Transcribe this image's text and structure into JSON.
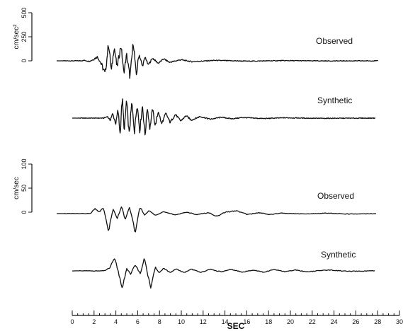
{
  "chart_data": {
    "type": "line",
    "xlabel": "SEC",
    "xlim": [
      0,
      30
    ],
    "x_ticks": [
      "0",
      "2",
      "4",
      "6",
      "8",
      "10",
      "12",
      "14",
      "16",
      "18",
      "20",
      "22",
      "24",
      "26",
      "28",
      "30"
    ],
    "panels": [
      {
        "unit_label": "cm/sec²",
        "y_ticks": [
          "0",
          "250",
          "500"
        ],
        "ylim": [
          0,
          500
        ],
        "traces": [
          {
            "label": "Observed",
            "points": [
              [
                0.0,
                0
              ],
              [
                2.0,
                0
              ],
              [
                2.5,
                4
              ],
              [
                2.9,
                -6
              ],
              [
                3.2,
                10
              ],
              [
                3.6,
                36
              ],
              [
                3.9,
                -16
              ],
              [
                4.3,
                -118
              ],
              [
                4.6,
                162
              ],
              [
                4.85,
                -96
              ],
              [
                5.1,
                132
              ],
              [
                5.35,
                -60
              ],
              [
                5.7,
                142
              ],
              [
                5.95,
                -112
              ],
              [
                6.2,
                56
              ],
              [
                6.5,
                -150
              ],
              [
                6.8,
                176
              ],
              [
                7.05,
                -140
              ],
              [
                7.3,
                64
              ],
              [
                7.6,
                -50
              ],
              [
                7.85,
                36
              ],
              [
                8.1,
                -38
              ],
              [
                8.5,
                24
              ],
              [
                9.0,
                -22
              ],
              [
                9.5,
                18
              ],
              [
                10.0,
                -14
              ],
              [
                11.0,
                10
              ],
              [
                12.0,
                -8
              ],
              [
                14.0,
                4
              ],
              [
                17.0,
                -3
              ],
              [
                20.0,
                2
              ],
              [
                24.0,
                -1
              ],
              [
                28.5,
                0
              ]
            ]
          },
          {
            "label": "Synthetic",
            "points": [
              [
                0.0,
                0
              ],
              [
                3.0,
                0
              ],
              [
                3.3,
                16
              ],
              [
                3.55,
                -20
              ],
              [
                3.8,
                40
              ],
              [
                4.1,
                -52
              ],
              [
                4.3,
                76
              ],
              [
                4.5,
                -142
              ],
              [
                4.7,
                184
              ],
              [
                4.9,
                -122
              ],
              [
                5.1,
                168
              ],
              [
                5.35,
                -150
              ],
              [
                5.6,
                142
              ],
              [
                5.85,
                -120
              ],
              [
                6.1,
                132
              ],
              [
                6.35,
                -116
              ],
              [
                6.6,
                122
              ],
              [
                6.85,
                -162
              ],
              [
                7.05,
                104
              ],
              [
                7.3,
                -96
              ],
              [
                7.55,
                86
              ],
              [
                7.8,
                -70
              ],
              [
                8.1,
                62
              ],
              [
                8.4,
                -54
              ],
              [
                8.8,
                44
              ],
              [
                9.2,
                -40
              ],
              [
                9.7,
                34
              ],
              [
                10.2,
                -26
              ],
              [
                10.7,
                22
              ],
              [
                11.2,
                -18
              ],
              [
                12.0,
                14
              ],
              [
                13.0,
                -10
              ],
              [
                14.0,
                8
              ],
              [
                15.0,
                -6
              ],
              [
                16.0,
                5
              ],
              [
                18.0,
                -4
              ],
              [
                20.0,
                3
              ],
              [
                23.0,
                -2
              ],
              [
                28.5,
                0
              ]
            ]
          }
        ]
      },
      {
        "unit_label": "cm/sec",
        "y_ticks": [
          "0",
          "50",
          "100"
        ],
        "ylim": [
          0,
          100
        ],
        "traces": [
          {
            "label": "Observed",
            "points": [
              [
                0.0,
                0
              ],
              [
                3.0,
                0
              ],
              [
                3.4,
                10
              ],
              [
                3.8,
                4
              ],
              [
                4.2,
                12
              ],
              [
                4.6,
                -40
              ],
              [
                5.0,
                10
              ],
              [
                5.4,
                -10
              ],
              [
                5.8,
                16
              ],
              [
                6.1,
                -14
              ],
              [
                6.5,
                14
              ],
              [
                7.0,
                -42
              ],
              [
                7.4,
                16
              ],
              [
                7.8,
                -4
              ],
              [
                8.2,
                6
              ],
              [
                8.8,
                -3
              ],
              [
                9.5,
                4
              ],
              [
                10.5,
                -3
              ],
              [
                11.5,
                3
              ],
              [
                12.5,
                -2
              ],
              [
                13.5,
                2
              ],
              [
                14.3,
                -6
              ],
              [
                15.0,
                3
              ],
              [
                16.0,
                6
              ],
              [
                17.0,
                -2
              ],
              [
                18.0,
                2
              ],
              [
                19.0,
                -2
              ],
              [
                20.0,
                1
              ],
              [
                22.0,
                -1
              ],
              [
                24.0,
                1
              ],
              [
                26.0,
                -1
              ],
              [
                28.5,
                0
              ]
            ]
          },
          {
            "label": "Synthetic",
            "points": [
              [
                0.0,
                0
              ],
              [
                3.0,
                0
              ],
              [
                3.5,
                6
              ],
              [
                4.0,
                26
              ],
              [
                4.4,
                -8
              ],
              [
                4.7,
                -38
              ],
              [
                5.1,
                6
              ],
              [
                5.5,
                -8
              ],
              [
                5.9,
                14
              ],
              [
                6.4,
                -6
              ],
              [
                6.8,
                28
              ],
              [
                7.1,
                -8
              ],
              [
                7.4,
                -38
              ],
              [
                7.8,
                8
              ],
              [
                8.2,
                -4
              ],
              [
                8.6,
                6
              ],
              [
                9.2,
                -4
              ],
              [
                9.8,
                4
              ],
              [
                10.5,
                -4
              ],
              [
                11.2,
                4
              ],
              [
                12.0,
                -3
              ],
              [
                13.0,
                3
              ],
              [
                14.0,
                -2
              ],
              [
                15.0,
                3
              ],
              [
                16.0,
                -3
              ],
              [
                17.0,
                2
              ],
              [
                18.0,
                -3
              ],
              [
                19.0,
                3
              ],
              [
                20.0,
                -2
              ],
              [
                21.0,
                2
              ],
              [
                22.0,
                -2
              ],
              [
                24.0,
                2
              ],
              [
                26.0,
                -1
              ],
              [
                28.5,
                0
              ]
            ]
          }
        ]
      }
    ]
  }
}
